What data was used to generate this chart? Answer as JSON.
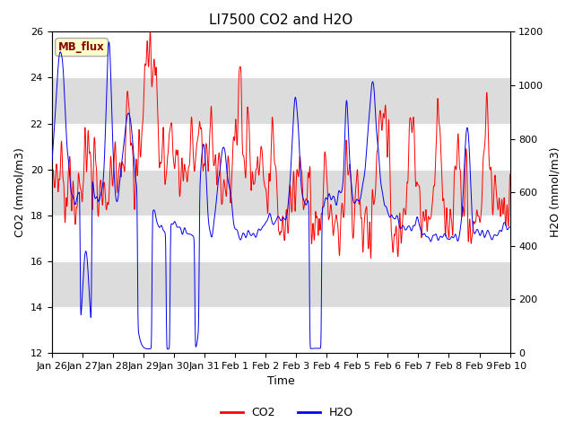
{
  "title": "LI7500 CO2 and H2O",
  "xlabel": "Time",
  "ylabel_left": "CO2 (mmol/m3)",
  "ylabel_right": "H2O (mmol/m3)",
  "ylim_left": [
    12,
    26
  ],
  "ylim_right": [
    0,
    1200
  ],
  "yticks_left": [
    12,
    14,
    16,
    18,
    20,
    22,
    24,
    26
  ],
  "yticks_right": [
    0,
    200,
    400,
    600,
    800,
    1000,
    1200
  ],
  "xtick_labels": [
    "Jan 26",
    "Jan 27",
    "Jan 28",
    "Jan 29",
    "Jan 30",
    "Jan 31",
    "Feb 1",
    "Feb 2",
    "Feb 3",
    "Feb 4",
    "Feb 5",
    "Feb 6",
    "Feb 7",
    "Feb 8",
    "Feb 9",
    "Feb 10"
  ],
  "annotation_text": "MB_flux",
  "annotation_bg": "#FFFFCC",
  "annotation_border": "#AAAAAA",
  "co2_color": "#FF0000",
  "h2o_color": "#0000EE",
  "legend_co2": "CO2",
  "legend_h2o": "H2O",
  "hband_color": "#DCDCDC",
  "plot_bg": "#FFFFFF",
  "fig_bg": "#FFFFFF",
  "title_fontsize": 11,
  "axis_fontsize": 9,
  "tick_fontsize": 8,
  "legend_fontsize": 9
}
